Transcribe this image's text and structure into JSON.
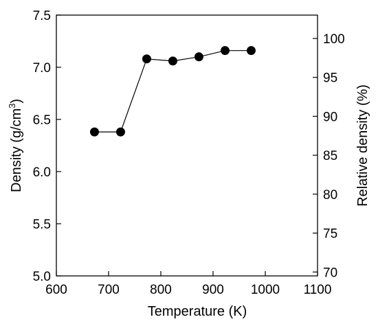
{
  "chart_data": {
    "type": "line",
    "title": "",
    "xlabel": "Temperature (K)",
    "ylabel": "Density (g/cm3)",
    "ylabel_main": "Density (g/cm",
    "ylabel_sup": "3",
    "ylabel_close": ")",
    "y2label": "Relative density (%)",
    "xlim": [
      600,
      1100
    ],
    "ylim": [
      5.0,
      7.5
    ],
    "y2lim": [
      69.5,
      103.0
    ],
    "x_ticks": [
      "600",
      "700",
      "800",
      "900",
      "1000",
      "1100"
    ],
    "y_ticks": [
      "5.0",
      "5.5",
      "6.0",
      "6.5",
      "7.0",
      "7.5"
    ],
    "y2_ticks": [
      "70",
      "75",
      "80",
      "85",
      "90",
      "95",
      "100"
    ],
    "grid": false,
    "series": [
      {
        "marker": "filled-circle",
        "color": "#000000",
        "x": [
          673,
          723,
          773,
          823,
          873,
          923,
          973
        ],
        "y": [
          6.38,
          6.38,
          7.08,
          7.06,
          7.1,
          7.16,
          7.16
        ]
      }
    ]
  }
}
